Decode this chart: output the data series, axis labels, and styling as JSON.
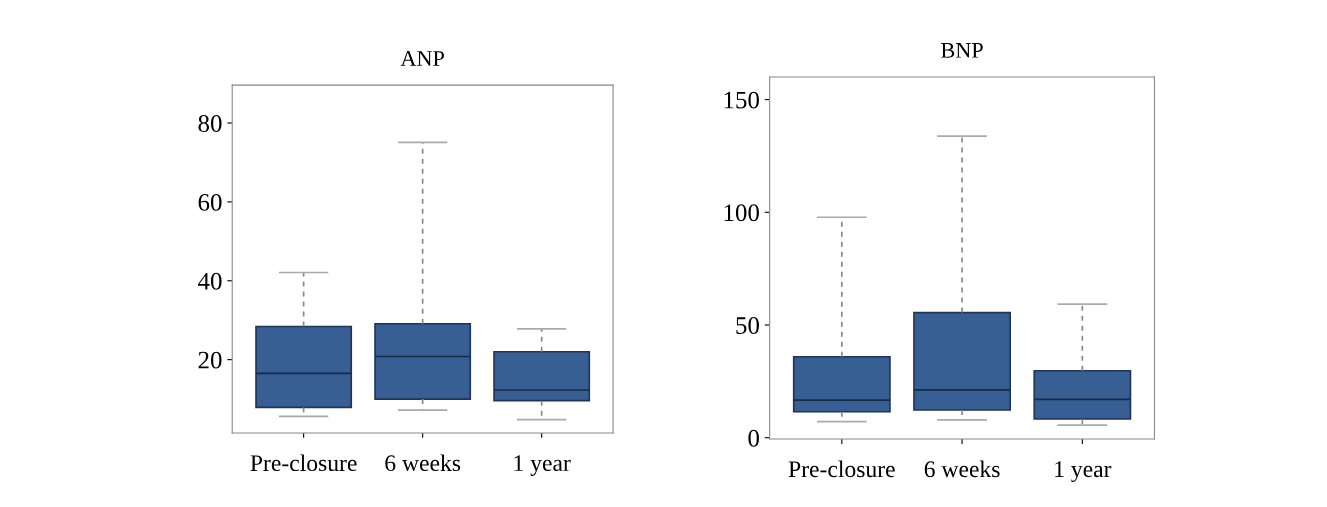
{
  "chart_data": [
    {
      "type": "box",
      "title": "ANP",
      "categories": [
        "Pre-closure",
        "6 weeks",
        "1 year"
      ],
      "color": "#375f94",
      "ylim": [
        1.4,
        89.6
      ],
      "yticks": [
        20,
        40,
        60,
        80
      ],
      "boxes": [
        {
          "low": 5.6,
          "q1": 7.9,
          "median": 16.5,
          "q3": 28.4,
          "high": 42.1
        },
        {
          "low": 7.2,
          "q1": 10.0,
          "median": 20.8,
          "q3": 29.1,
          "high": 75.1
        },
        {
          "low": 4.8,
          "q1": 9.6,
          "median": 12.3,
          "q3": 22.0,
          "high": 27.8
        }
      ]
    },
    {
      "type": "box",
      "title": "BNP",
      "categories": [
        "Pre-closure",
        "6 weeks",
        "1 year"
      ],
      "color": "#375f94",
      "ylim": [
        -0.6,
        160
      ],
      "yticks": [
        0,
        50,
        100,
        150
      ],
      "boxes": [
        {
          "low": 7.1,
          "q1": 11.5,
          "median": 16.7,
          "q3": 35.9,
          "high": 97.8
        },
        {
          "low": 7.9,
          "q1": 12.3,
          "median": 21.2,
          "q3": 55.5,
          "high": 133.8
        },
        {
          "low": 5.6,
          "q1": 8.3,
          "median": 17.0,
          "q3": 29.7,
          "high": 59.3
        }
      ]
    }
  ]
}
